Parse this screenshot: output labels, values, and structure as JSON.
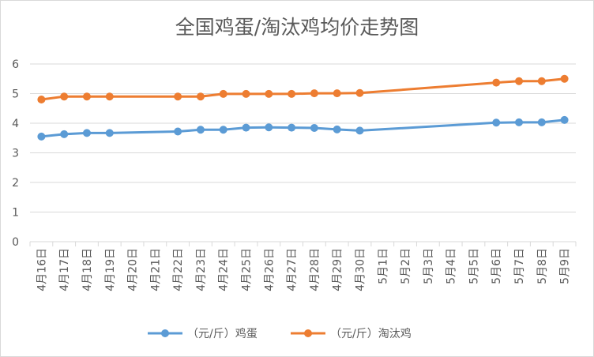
{
  "chart_data": {
    "type": "line",
    "title": "全国鸡蛋/淘汰鸡均价走势图",
    "categories": [
      "4月16日",
      "4月17日",
      "4月18日",
      "4月19日",
      "4月20日",
      "4月21日",
      "4月22日",
      "4月23日",
      "4月24日",
      "4月25日",
      "4月26日",
      "4月27日",
      "4月28日",
      "4月29日",
      "4月30日",
      "5月1日",
      "5月2日",
      "5月3日",
      "5月4日",
      "5月5日",
      "5月6日",
      "5月7日",
      "5月8日",
      "5月9日"
    ],
    "series": [
      {
        "name": "（元/斤）鸡蛋",
        "color": "#5b9bd5",
        "values": [
          3.55,
          3.63,
          3.67,
          3.67,
          null,
          null,
          3.72,
          3.78,
          3.78,
          3.85,
          3.86,
          3.85,
          3.84,
          3.79,
          3.75,
          null,
          null,
          null,
          null,
          null,
          4.02,
          4.03,
          4.03,
          4.11
        ]
      },
      {
        "name": "（元/斤）淘汰鸡",
        "color": "#ed7d31",
        "values": [
          4.8,
          4.9,
          4.9,
          4.9,
          null,
          null,
          4.9,
          4.9,
          4.99,
          4.99,
          4.99,
          4.99,
          5.01,
          5.01,
          5.02,
          null,
          null,
          null,
          null,
          null,
          5.37,
          5.42,
          5.42,
          5.5
        ]
      }
    ],
    "ylim": [
      0,
      6
    ],
    "yticks": [
      0,
      1,
      2,
      3,
      4,
      5,
      6
    ],
    "grid": true,
    "legend_position": "bottom"
  }
}
